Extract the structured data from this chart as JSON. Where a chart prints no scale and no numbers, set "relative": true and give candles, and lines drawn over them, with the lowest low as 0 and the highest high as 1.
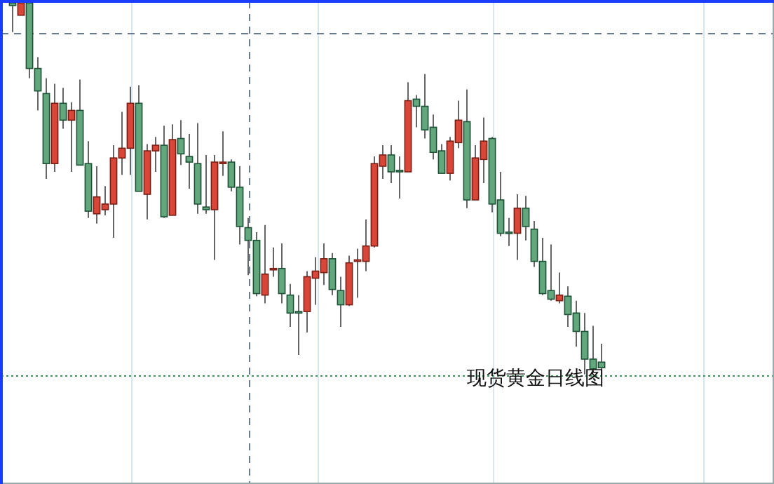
{
  "chart_data": {
    "type": "candlestick",
    "title": "现货黄金日线图",
    "relative": true,
    "categories": [
      null,
      null,
      null,
      null,
      null,
      null,
      null,
      null,
      null,
      null,
      null,
      null,
      null,
      null,
      null,
      null,
      null,
      null,
      null,
      null,
      null,
      null,
      null,
      null,
      null,
      null,
      null,
      null,
      null,
      null,
      null,
      null,
      null,
      null,
      null,
      null,
      null,
      null,
      null,
      null,
      null,
      null,
      null,
      null,
      null,
      null,
      null,
      null,
      null,
      null,
      null,
      null,
      null,
      null,
      null,
      null,
      null,
      null,
      null,
      null,
      null,
      null,
      null,
      null,
      null,
      null,
      null,
      null,
      null,
      null,
      null
    ],
    "ohlc": [
      [
        0.996,
        1,
        0.918,
        0.989
      ],
      [
        0.963,
        1,
        0.963,
        0.996
      ],
      [
        0.996,
        1,
        0.795,
        0.821
      ],
      [
        0.821,
        0.851,
        0.709,
        0.761
      ],
      [
        0.754,
        0.795,
        0.526,
        0.567
      ],
      [
        0.567,
        0.78,
        0.545,
        0.728
      ],
      [
        0.728,
        0.769,
        0.66,
        0.683
      ],
      [
        0.683,
        0.731,
        0.545,
        0.709
      ],
      [
        0.709,
        0.791,
        0.563,
        0.563
      ],
      [
        0.567,
        0.627,
        0.422,
        0.44
      ],
      [
        0.433,
        0.56,
        0.407,
        0.478
      ],
      [
        0.444,
        0.507,
        0.429,
        0.459
      ],
      [
        0.459,
        0.616,
        0.369,
        0.582
      ],
      [
        0.582,
        0.705,
        0.537,
        0.608
      ],
      [
        0.608,
        0.772,
        0.537,
        0.728
      ],
      [
        0.728,
        0.776,
        0.493,
        0.493
      ],
      [
        0.485,
        0.619,
        0.418,
        0.601
      ],
      [
        0.601,
        0.638,
        0.545,
        0.616
      ],
      [
        0.616,
        0.668,
        0.422,
        0.425
      ],
      [
        0.429,
        0.672,
        0.429,
        0.631
      ],
      [
        0.634,
        0.683,
        0.563,
        0.593
      ],
      [
        0.586,
        0.646,
        0.5,
        0.571
      ],
      [
        0.567,
        0.675,
        0.433,
        0.459
      ],
      [
        0.451,
        0.59,
        0.433,
        0.444
      ],
      [
        0.444,
        0.59,
        0.31,
        0.571
      ],
      [
        0.567,
        0.653,
        0.534,
        0.571
      ],
      [
        0.571,
        0.578,
        0.493,
        0.504
      ],
      [
        0.504,
        0.56,
        0.351,
        0.399
      ],
      [
        0.396,
        0.422,
        0.269,
        0.362
      ],
      [
        0.362,
        0.384,
        0.213,
        0.22
      ],
      [
        0.216,
        0.403,
        0.194,
        0.272
      ],
      [
        0.284,
        0.343,
        0.265,
        0.287
      ],
      [
        0.287,
        0.354,
        0.194,
        0.22
      ],
      [
        0.216,
        0.246,
        0.131,
        0.168
      ],
      [
        0.172,
        0.216,
        0.056,
        0.168
      ],
      [
        0.172,
        0.28,
        0.116,
        0.265
      ],
      [
        0.261,
        0.317,
        0.19,
        0.28
      ],
      [
        0.276,
        0.354,
        0.243,
        0.313
      ],
      [
        0.313,
        0.328,
        0.216,
        0.231
      ],
      [
        0.228,
        0.265,
        0.131,
        0.19
      ],
      [
        0.19,
        0.321,
        0.187,
        0.302
      ],
      [
        0.306,
        0.34,
        0.209,
        0.31
      ],
      [
        0.306,
        0.418,
        0.28,
        0.347
      ],
      [
        0.347,
        0.586,
        0.343,
        0.567
      ],
      [
        0.56,
        0.616,
        0.526,
        0.59
      ],
      [
        0.59,
        0.616,
        0.515,
        0.545
      ],
      [
        0.549,
        0.586,
        0.474,
        0.545
      ],
      [
        0.545,
        0.784,
        0.545,
        0.735
      ],
      [
        0.739,
        0.75,
        0.664,
        0.72
      ],
      [
        0.72,
        0.806,
        0.634,
        0.657
      ],
      [
        0.664,
        0.698,
        0.578,
        0.597
      ],
      [
        0.601,
        0.619,
        0.541,
        0.541
      ],
      [
        0.541,
        0.638,
        0.522,
        0.627
      ],
      [
        0.623,
        0.735,
        0.608,
        0.683
      ],
      [
        0.679,
        0.765,
        0.448,
        0.47
      ],
      [
        0.47,
        0.616,
        0.47,
        0.582
      ],
      [
        0.578,
        0.69,
        0.515,
        0.627
      ],
      [
        0.634,
        0.638,
        0.437,
        0.459
      ],
      [
        0.47,
        0.545,
        0.373,
        0.381
      ],
      [
        0.384,
        0.422,
        0.347,
        0.381
      ],
      [
        0.381,
        0.485,
        0.31,
        0.448
      ],
      [
        0.448,
        0.481,
        0.362,
        0.399
      ],
      [
        0.392,
        0.414,
        0.291,
        0.306
      ],
      [
        0.306,
        0.369,
        0.216,
        0.22
      ],
      [
        0.228,
        0.351,
        0.201,
        0.205
      ],
      [
        0.201,
        0.276,
        0.194,
        0.216
      ],
      [
        0.213,
        0.239,
        0.131,
        0.164
      ],
      [
        0.168,
        0.201,
        0.078,
        0.119
      ],
      [
        0.119,
        0.168,
        0.004,
        0.045
      ],
      [
        0.045,
        0.134,
        0.011,
        0.019
      ],
      [
        0.037,
        0.086,
        0,
        0.022
      ]
    ],
    "ref_lines": [
      {
        "axis": "y",
        "value": 0,
        "color": "#3a9a5a",
        "line_style": "dotted"
      },
      {
        "axis": "y",
        "value": 0.914,
        "color": "#6a7d90",
        "line_style": "dashed"
      }
    ]
  }
}
